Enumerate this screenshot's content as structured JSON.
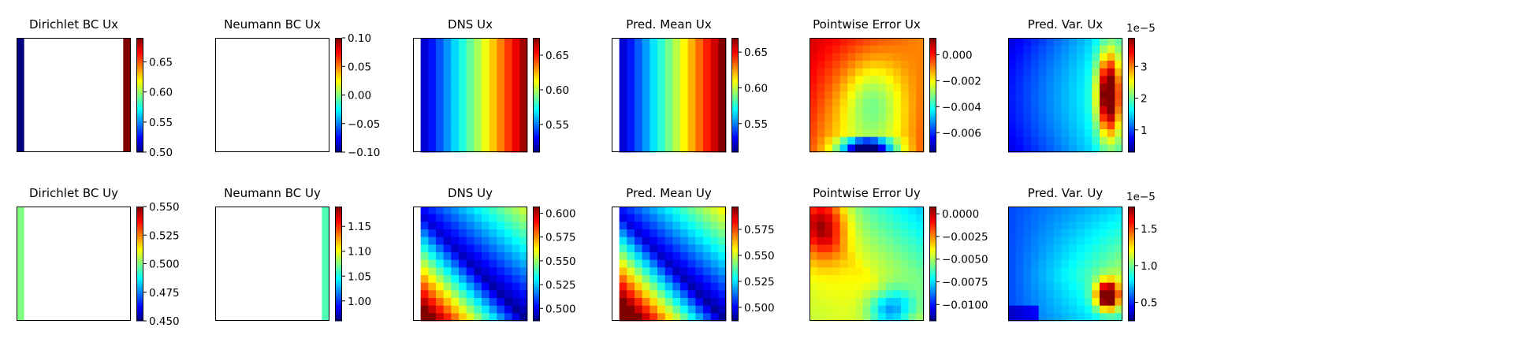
{
  "colormap": "jet",
  "chart_data": [
    {
      "type": "heatmap",
      "title": "Dirichlet BC Ux",
      "row": 0,
      "col": 0,
      "field": "dirichlet_ux",
      "vmin": 0.5,
      "vmax": 0.69,
      "ticks": [
        0.5,
        0.55,
        0.6,
        0.65
      ],
      "tick_labels": [
        "0.50",
        "0.55",
        "0.60",
        "0.65"
      ],
      "scale_exponent": ""
    },
    {
      "type": "heatmap",
      "title": "Neumann BC Ux",
      "row": 0,
      "col": 1,
      "field": "empty",
      "vmin": -0.1,
      "vmax": 0.1,
      "ticks": [
        -0.1,
        -0.05,
        0,
        0.05,
        0.1
      ],
      "tick_labels": [
        "−0.10",
        "−0.05",
        "0.00",
        "0.05",
        "0.10"
      ],
      "scale_exponent": ""
    },
    {
      "type": "heatmap",
      "title": "DNS Ux",
      "row": 0,
      "col": 2,
      "field": "dns_ux",
      "vmin": 0.51,
      "vmax": 0.675,
      "ticks": [
        0.55,
        0.6,
        0.65
      ],
      "tick_labels": [
        "0.55",
        "0.60",
        "0.65"
      ],
      "scale_exponent": ""
    },
    {
      "type": "heatmap",
      "title": "Pred. Mean Ux",
      "row": 0,
      "col": 3,
      "field": "dns_ux",
      "vmin": 0.51,
      "vmax": 0.67,
      "ticks": [
        0.55,
        0.6,
        0.65
      ],
      "tick_labels": [
        "0.55",
        "0.60",
        "0.65"
      ],
      "scale_exponent": ""
    },
    {
      "type": "heatmap",
      "title": "Pointwise Error Ux",
      "row": 0,
      "col": 4,
      "field": "err_ux",
      "vmin": -0.0075,
      "vmax": 0.0013,
      "ticks": [
        -0.006,
        -0.004,
        -0.002,
        0
      ],
      "tick_labels": [
        "−0.006",
        "−0.004",
        "−0.002",
        "0.000"
      ],
      "scale_exponent": ""
    },
    {
      "type": "heatmap",
      "title": "Pred. Var. Ux",
      "row": 0,
      "col": 5,
      "field": "var_ux",
      "vmin": 0.3,
      "vmax": 3.9,
      "ticks": [
        1,
        2,
        3
      ],
      "tick_labels": [
        "1",
        "2",
        "3"
      ],
      "scale_exponent": "1e−5"
    },
    {
      "type": "heatmap",
      "title": "Dirichlet BC Uy",
      "row": 1,
      "col": 0,
      "field": "dirichlet_uy",
      "vmin": 0.45,
      "vmax": 0.55,
      "ticks": [
        0.45,
        0.475,
        0.5,
        0.525,
        0.55
      ],
      "tick_labels": [
        "0.450",
        "0.475",
        "0.500",
        "0.525",
        "0.550"
      ],
      "scale_exponent": ""
    },
    {
      "type": "heatmap",
      "title": "Neumann BC Uy",
      "row": 1,
      "col": 1,
      "field": "neumann_uy",
      "vmin": 0.96,
      "vmax": 1.19,
      "ticks": [
        1,
        1.05,
        1.1,
        1.15
      ],
      "tick_labels": [
        "1.00",
        "1.05",
        "1.10",
        "1.15"
      ],
      "scale_exponent": ""
    },
    {
      "type": "heatmap",
      "title": "DNS Uy",
      "row": 1,
      "col": 2,
      "field": "dns_uy",
      "vmin": 0.487,
      "vmax": 0.607,
      "ticks": [
        0.5,
        0.525,
        0.55,
        0.575,
        0.6
      ],
      "tick_labels": [
        "0.500",
        "0.525",
        "0.550",
        "0.575",
        "0.600"
      ],
      "scale_exponent": ""
    },
    {
      "type": "heatmap",
      "title": "Pred. Mean Uy",
      "row": 1,
      "col": 3,
      "field": "dns_uy",
      "vmin": 0.487,
      "vmax": 0.597,
      "ticks": [
        0.5,
        0.525,
        0.55,
        0.575
      ],
      "tick_labels": [
        "0.500",
        "0.525",
        "0.550",
        "0.575"
      ],
      "scale_exponent": ""
    },
    {
      "type": "heatmap",
      "title": "Pointwise Error Uy",
      "row": 1,
      "col": 4,
      "field": "err_uy",
      "vmin": -0.0118,
      "vmax": 0.0008,
      "ticks": [
        -0.01,
        -0.0075,
        -0.005,
        -0.0025,
        0
      ],
      "tick_labels": [
        "−0.0100",
        "−0.0075",
        "−0.0050",
        "−0.0025",
        "0.0000"
      ],
      "scale_exponent": ""
    },
    {
      "type": "heatmap",
      "title": "Pred. Var. Uy",
      "row": 1,
      "col": 5,
      "field": "var_uy",
      "vmin": 0.25,
      "vmax": 1.8,
      "ticks": [
        0.5,
        1,
        1.5
      ],
      "tick_labels": [
        "0.5",
        "1.0",
        "1.5"
      ],
      "scale_exponent": "1e−5"
    }
  ]
}
